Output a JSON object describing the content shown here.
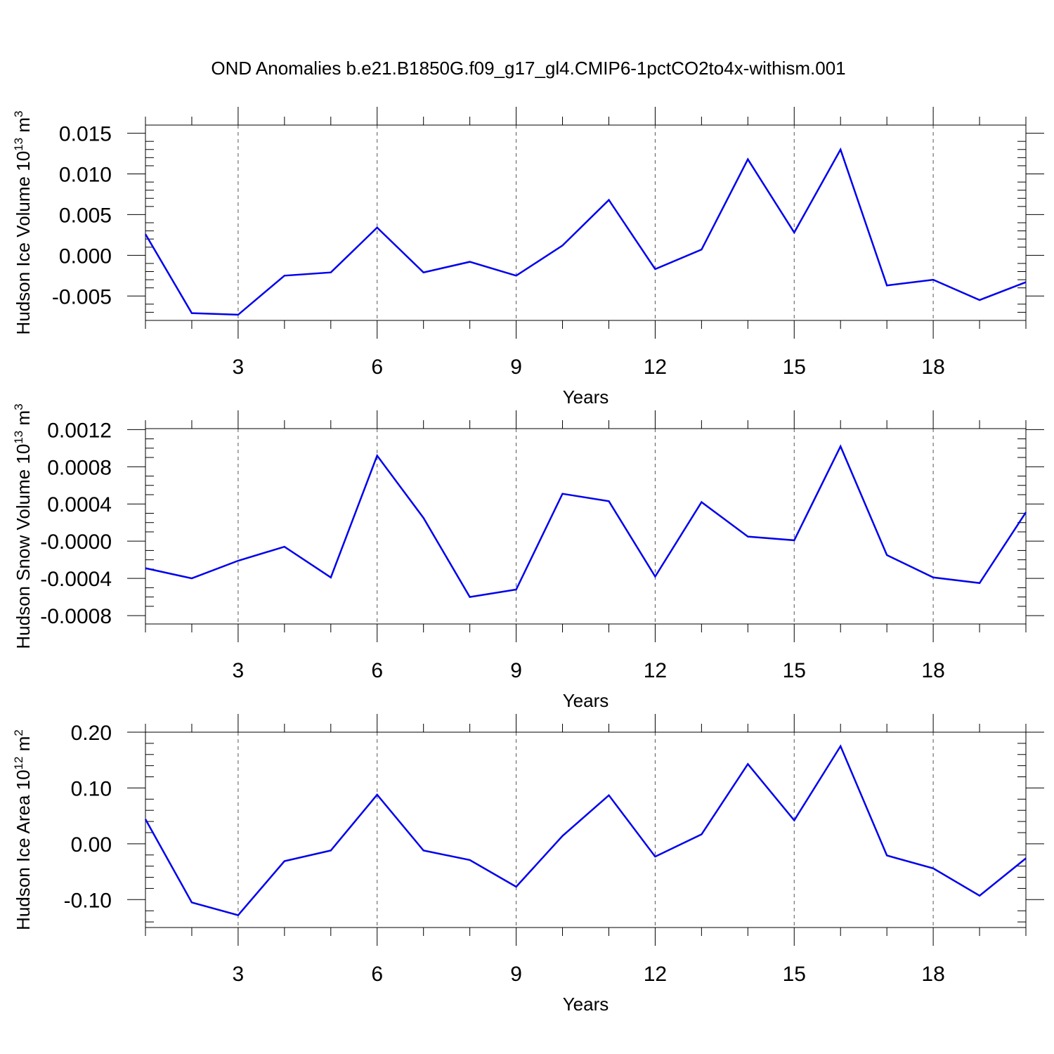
{
  "title": "OND Anomalies b.e21.B1850G.f09_g17_gl4.CMIP6-1pctCO2to4x-withism.001",
  "colors": {
    "series": "#0000ee",
    "grid": "#555555",
    "axis": "#000000"
  },
  "chart_data": [
    {
      "type": "line",
      "ylabel_main": "Hudson Ice Volume 10",
      "ylabel_exp": "13",
      "ylabel_unit": " m",
      "ylabel_unit_exp": "3",
      "xlabel": "Years",
      "xlim": [
        1,
        20
      ],
      "ylim": [
        -0.008,
        0.016
      ],
      "x_ticks": [
        3,
        6,
        9,
        12,
        15,
        18
      ],
      "x_tick_labels": [
        "3",
        "6",
        "9",
        "12",
        "15",
        "18"
      ],
      "y_ticks": [
        0.015,
        0.01,
        0.005,
        0.0,
        -0.005
      ],
      "y_tick_labels": [
        "0.015",
        "0.010",
        "0.005",
        "0.000",
        "-0.005"
      ],
      "y_minor_step": 0.001,
      "x_minor_step": 1,
      "grid": "vertical dashed at x ticks",
      "series": [
        {
          "x": [
            1,
            2,
            3,
            4,
            5,
            6,
            7,
            8,
            9,
            10,
            11,
            12,
            13,
            14,
            15,
            16,
            17,
            18,
            19,
            20
          ],
          "values": [
            0.0026,
            -0.0071,
            -0.0073,
            -0.0025,
            -0.0021,
            0.0034,
            -0.0021,
            -0.0008,
            -0.0025,
            0.0012,
            0.0068,
            -0.0017,
            0.0007,
            0.0118,
            0.0028,
            0.013,
            -0.0037,
            -0.003,
            -0.0055,
            -0.0033
          ]
        }
      ]
    },
    {
      "type": "line",
      "ylabel_main": "Hudson Snow Volume 10",
      "ylabel_exp": "13",
      "ylabel_unit": " m",
      "ylabel_unit_exp": "3",
      "xlabel": "Years",
      "xlim": [
        1,
        20
      ],
      "ylim": [
        -0.00089,
        0.00121
      ],
      "x_ticks": [
        3,
        6,
        9,
        12,
        15,
        18
      ],
      "x_tick_labels": [
        "3",
        "6",
        "9",
        "12",
        "15",
        "18"
      ],
      "y_ticks": [
        0.0012,
        0.0008,
        0.0004,
        0.0,
        -0.0004,
        -0.0008
      ],
      "y_tick_labels": [
        "0.0012",
        "0.0008",
        "0.0004",
        "-0.0000",
        "-0.0004",
        "-0.0008"
      ],
      "y_minor_step": 0.0001,
      "x_minor_step": 1,
      "grid": "vertical dashed at x ticks",
      "series": [
        {
          "x": [
            1,
            2,
            3,
            4,
            5,
            6,
            7,
            8,
            9,
            10,
            11,
            12,
            13,
            14,
            15,
            16,
            17,
            18,
            19,
            20
          ],
          "values": [
            -0.00029,
            -0.0004,
            -0.00021,
            -6e-05,
            -0.00039,
            0.00092,
            0.00025,
            -0.0006,
            -0.00052,
            0.00051,
            0.00043,
            -0.00038,
            0.00042,
            5e-05,
            1e-05,
            0.00102,
            -0.00015,
            -0.00039,
            -0.00045,
            0.00031
          ]
        }
      ]
    },
    {
      "type": "line",
      "ylabel_main": "Hudson Ice Area 10",
      "ylabel_exp": "12",
      "ylabel_unit": " m",
      "ylabel_unit_exp": "2",
      "xlabel": "Years",
      "xlim": [
        1,
        20
      ],
      "ylim": [
        -0.15,
        0.2
      ],
      "x_ticks": [
        3,
        6,
        9,
        12,
        15,
        18
      ],
      "x_tick_labels": [
        "3",
        "6",
        "9",
        "12",
        "15",
        "18"
      ],
      "y_ticks": [
        0.2,
        0.1,
        0.0,
        -0.1
      ],
      "y_tick_labels": [
        "0.20",
        "0.10",
        "0.00",
        "-0.10"
      ],
      "y_minor_step": 0.02,
      "x_minor_step": 1,
      "grid": "vertical dashed at x ticks",
      "series": [
        {
          "x": [
            1,
            2,
            3,
            4,
            5,
            6,
            7,
            8,
            9,
            10,
            11,
            12,
            13,
            14,
            15,
            16,
            17,
            18,
            19,
            20
          ],
          "values": [
            0.044,
            -0.105,
            -0.128,
            -0.031,
            -0.012,
            0.088,
            -0.012,
            -0.029,
            -0.077,
            0.014,
            0.087,
            -0.023,
            0.017,
            0.143,
            0.042,
            0.175,
            -0.021,
            -0.044,
            -0.093,
            -0.026
          ]
        }
      ]
    }
  ]
}
